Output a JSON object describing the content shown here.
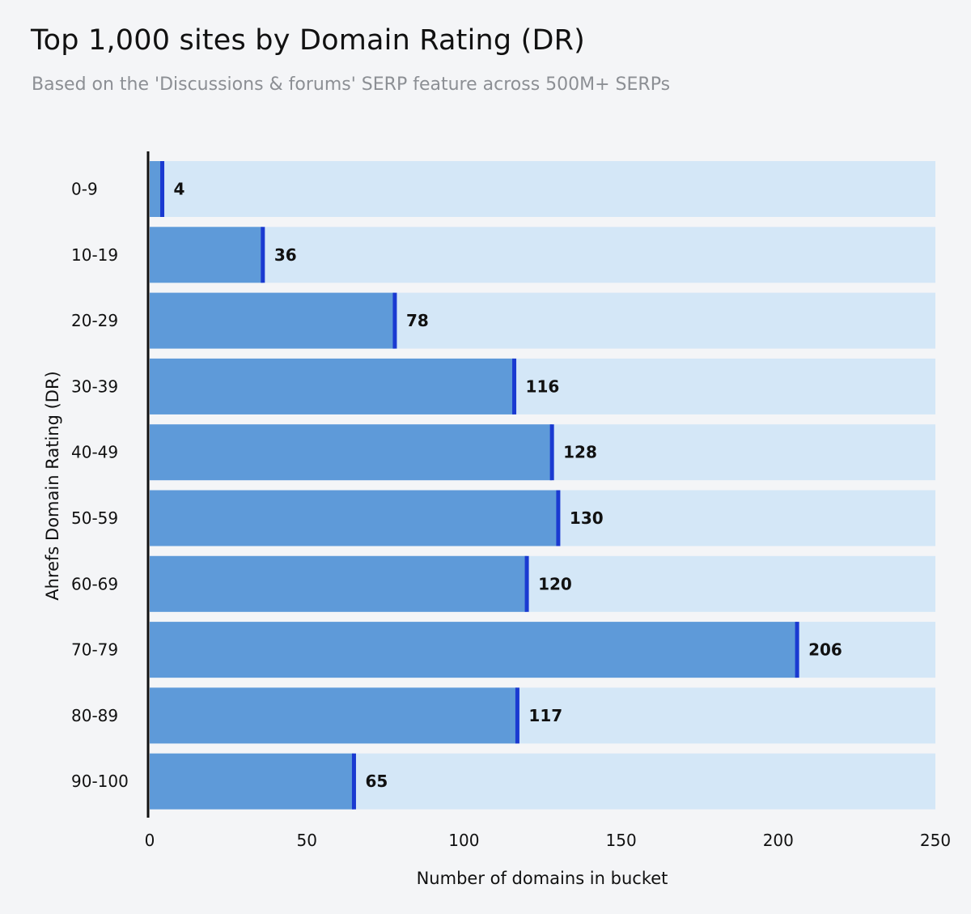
{
  "chart_data": {
    "type": "bar",
    "orientation": "horizontal",
    "title": "Top 1,000 sites by Domain Rating (DR)",
    "subtitle": "Based on the 'Discussions & forums' SERP feature across 500M+ SERPs",
    "xlabel": "Number of domains in bucket",
    "ylabel": "Ahrefs Domain Rating (DR)",
    "categories": [
      "0-9",
      "10-19",
      "20-29",
      "30-39",
      "40-49",
      "50-59",
      "60-69",
      "70-79",
      "80-89",
      "90-100"
    ],
    "values": [
      4,
      36,
      78,
      116,
      128,
      130,
      120,
      206,
      117,
      65
    ],
    "value_labels": [
      "4",
      "36",
      "78",
      "116",
      "128",
      "130",
      "120",
      "206",
      "117",
      "65"
    ],
    "xlim": [
      0,
      250
    ],
    "xticks": [
      0,
      50,
      100,
      150,
      200,
      250
    ],
    "xtick_labels": [
      "0",
      "50",
      "100",
      "150",
      "200",
      "250"
    ],
    "grid": false,
    "legend": "none",
    "colors": {
      "bar": "#5e9ad9",
      "bar_end": "#1a3ad1",
      "track": "#d4e7f7",
      "axis": "#111111"
    }
  }
}
